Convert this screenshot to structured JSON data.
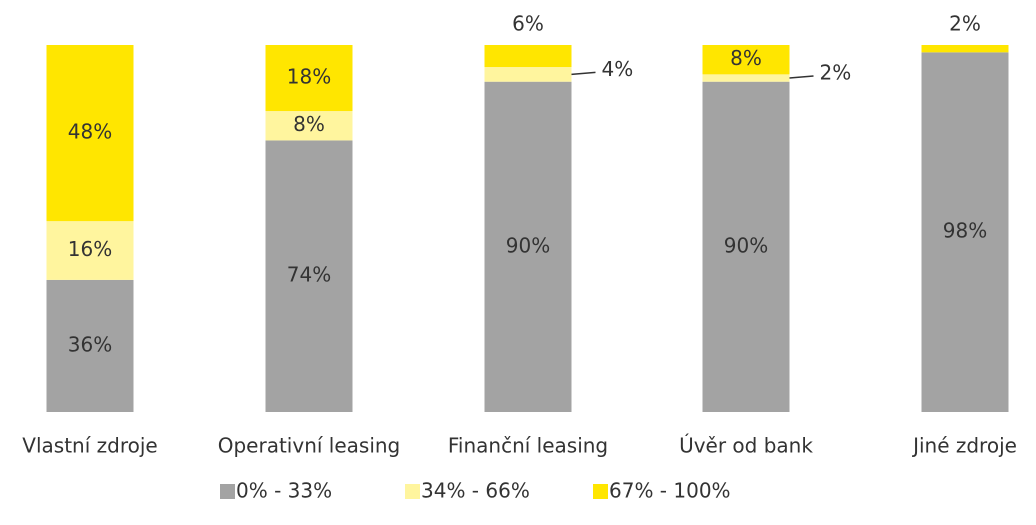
{
  "chart_data": {
    "type": "stacked_bar",
    "categories": [
      "Vlastní zdroje",
      "Operativní leasing",
      "Finanční leasing",
      "Úvěr od bank",
      "Jiné zdroje"
    ],
    "series": [
      {
        "name": "0% - 33%",
        "color": "#a3a3a3",
        "values": [
          36,
          74,
          90,
          90,
          98
        ],
        "value_labels": [
          "36%",
          "74%",
          "90%",
          "90%",
          "98%"
        ]
      },
      {
        "name": "34%  - 66%",
        "color": "#fff59e",
        "values": [
          16,
          8,
          4,
          2,
          null
        ],
        "value_labels": [
          "16%",
          "8%",
          "4%",
          "2%",
          null
        ]
      },
      {
        "name": "67% - 100%",
        "color": "#ffe600",
        "values": [
          48,
          18,
          6,
          8,
          2
        ],
        "value_labels": [
          "48%",
          "18%",
          "6%",
          "8%",
          "2%"
        ]
      }
    ]
  }
}
